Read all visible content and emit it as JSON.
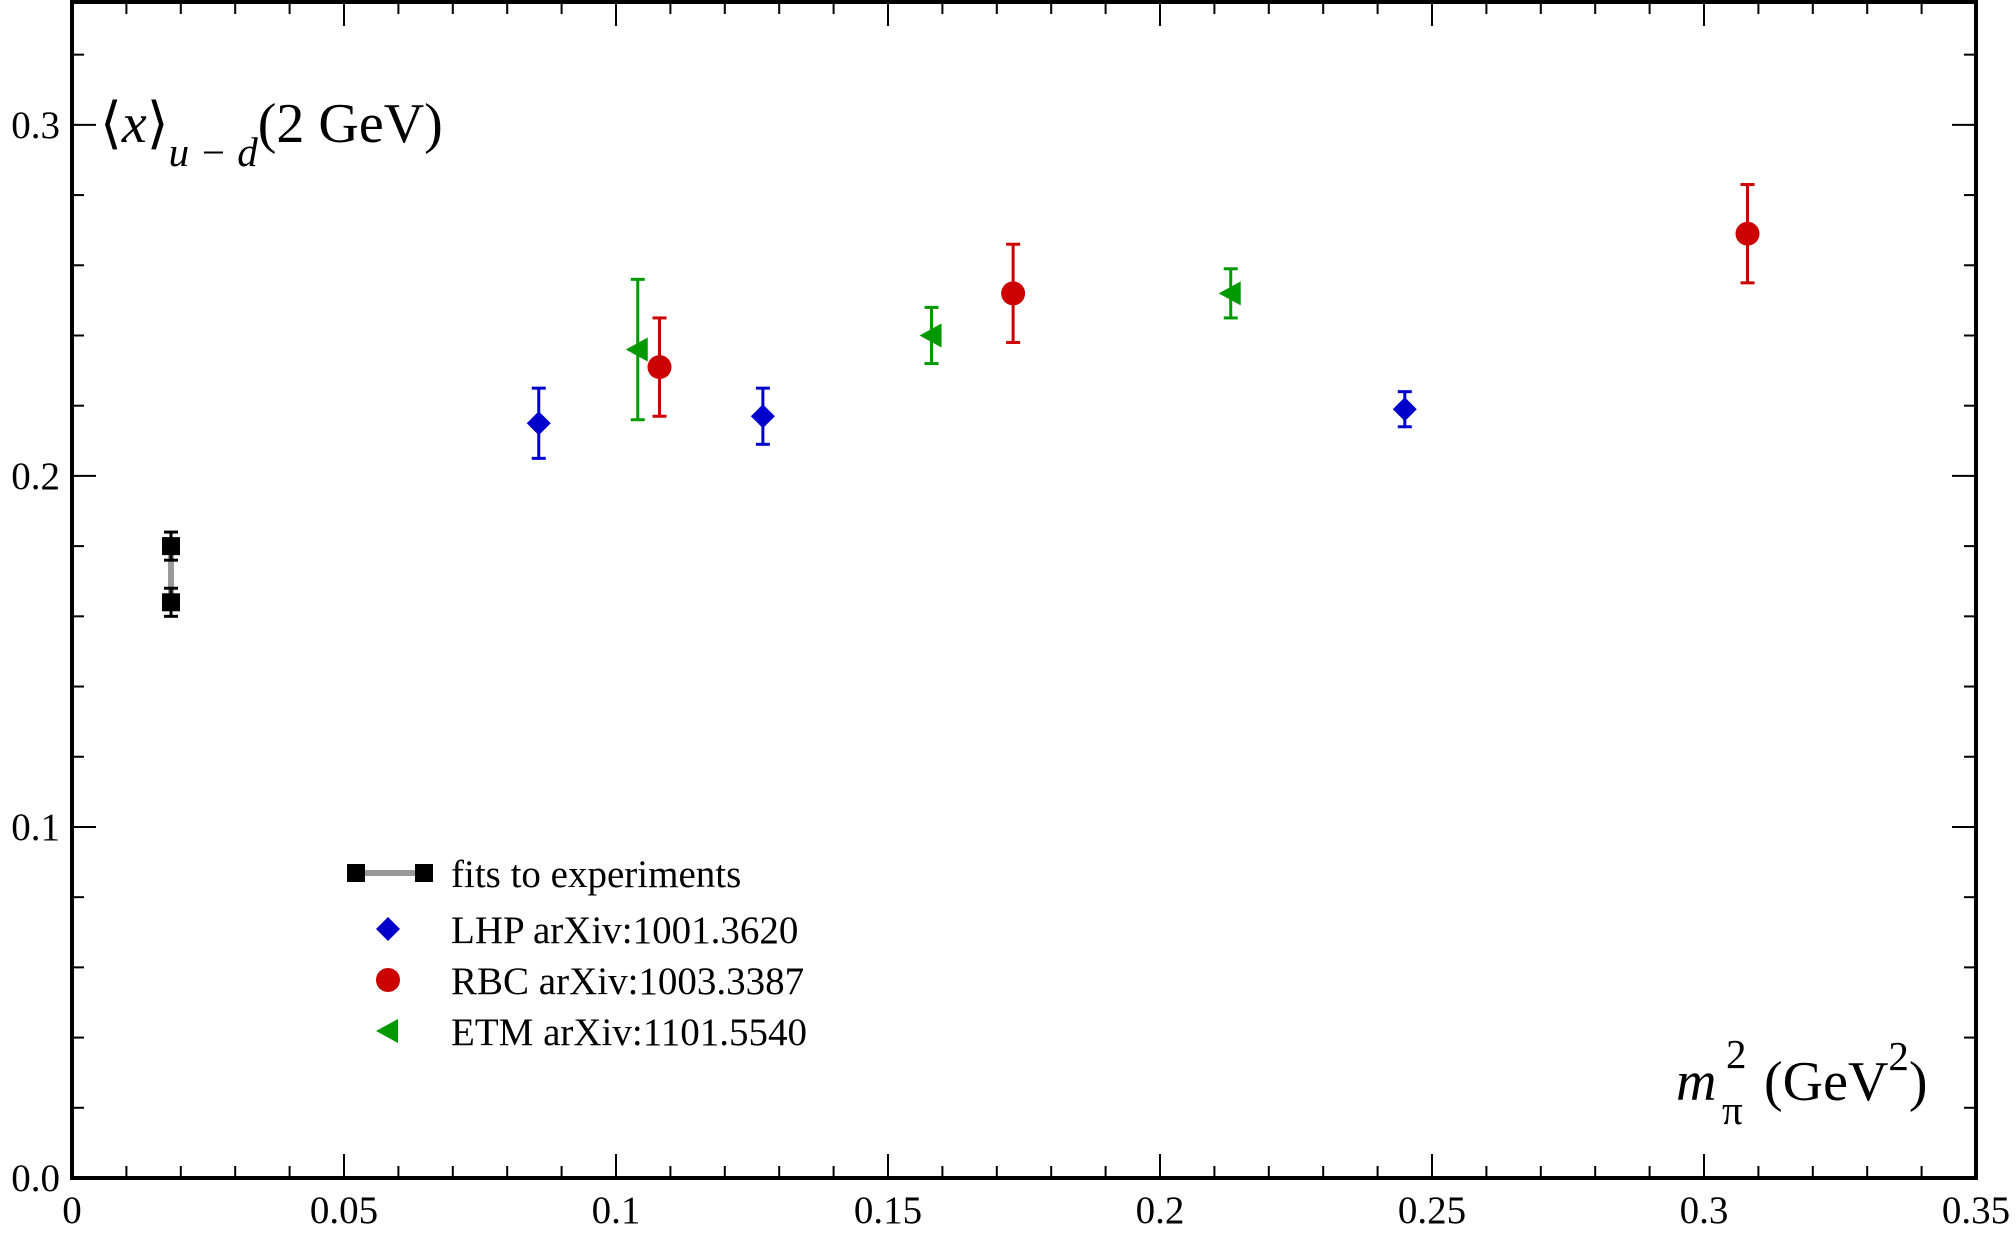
{
  "chart_data": {
    "type": "scatter",
    "x_ticks": [
      "0",
      "0.05",
      "0.1",
      "0.15",
      "0.2",
      "0.25",
      "0.3",
      "0.35"
    ],
    "y_ticks": [
      "0.0",
      "0.1",
      "0.2",
      "0.3"
    ],
    "xlim": [
      0,
      0.35
    ],
    "ylim": [
      0,
      0.335
    ],
    "x_tick_values": [
      0,
      0.05,
      0.1,
      0.15,
      0.2,
      0.25,
      0.3,
      0.35
    ],
    "y_tick_values": [
      0,
      0.1,
      0.2,
      0.3
    ],
    "x_minor_step": 0.01,
    "y_minor_step": 0.02,
    "grid": false,
    "legend_position": "bottom-left",
    "ylabel": {
      "open": "⟨",
      "var": "x",
      "close": "⟩",
      "sub": "u − d",
      "tail": "(2 GeV)"
    },
    "xlabel": {
      "var": "m",
      "sup": "2",
      "sub": "π",
      "unit_open": "(GeV",
      "unit_sup": "2",
      "unit_close": ")"
    },
    "series": [
      {
        "name": "fits to experiments",
        "marker": "square",
        "color": "#000000",
        "connector_color": "#999999",
        "points": [
          {
            "x": 0.0182,
            "y": 0.18,
            "err": 0.004
          },
          {
            "x": 0.0182,
            "y": 0.164,
            "err": 0.004
          }
        ]
      },
      {
        "name": "LHP arXiv:1001.3620",
        "marker": "diamond",
        "color": "#0000cc",
        "points": [
          {
            "x": 0.0858,
            "y": 0.215,
            "err": 0.01
          },
          {
            "x": 0.127,
            "y": 0.217,
            "err": 0.008
          },
          {
            "x": 0.245,
            "y": 0.219,
            "err": 0.005
          }
        ]
      },
      {
        "name": "RBC arXiv:1003.3387",
        "marker": "circle",
        "color": "#cc0000",
        "points": [
          {
            "x": 0.108,
            "y": 0.231,
            "err": 0.014
          },
          {
            "x": 0.173,
            "y": 0.252,
            "err": 0.014
          },
          {
            "x": 0.308,
            "y": 0.269,
            "err": 0.014
          }
        ]
      },
      {
        "name": "ETM arXiv:1101.5540",
        "marker": "triangle-left",
        "color": "#009900",
        "points": [
          {
            "x": 0.104,
            "y": 0.236,
            "err": 0.02
          },
          {
            "x": 0.158,
            "y": 0.24,
            "err": 0.008
          },
          {
            "x": 0.213,
            "y": 0.252,
            "err": 0.007
          }
        ]
      }
    ]
  }
}
